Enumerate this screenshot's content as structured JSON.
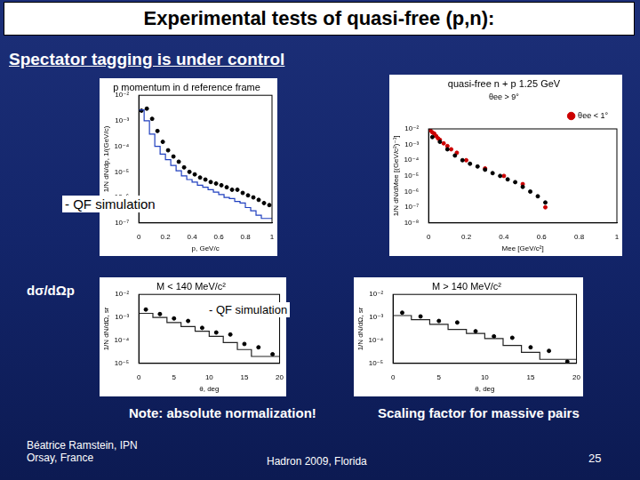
{
  "slide": {
    "title": "Experimental tests of quasi-free (p,n):",
    "subtitle": "Spectator tagging is under control",
    "qf_label_top": "- QF simulation",
    "qf_label_bottom": "- QF simulation",
    "section_label": "dσ/dΩp",
    "note_left": "Note: absolute normalization!",
    "note_right": "Scaling factor for massive pairs",
    "author": [
      "Béatrice Ramstein, IPN",
      "Orsay, France"
    ],
    "conference": "Hadron 2009, Florida",
    "page": "25"
  },
  "chart_data": [
    {
      "type": "line",
      "title": "p momentum in d reference frame",
      "x_label": "p, GeV/c",
      "y_label": "1/N dN/dp, 1/(GeV/c)",
      "log": "y",
      "grid": false,
      "xlim": [
        0,
        1
      ],
      "xticks": [
        0,
        0.2,
        0.4,
        0.6,
        0.8,
        1
      ],
      "ylim": [
        1e-07,
        0.01
      ],
      "yticks": [
        {
          "value": 1e-07,
          "label": "10⁻⁷"
        },
        {
          "value": 1e-06,
          "label": "10⁻⁶"
        },
        {
          "value": 1e-05,
          "label": "10⁻⁵"
        },
        {
          "value": 0.0001,
          "label": "10⁻⁴"
        },
        {
          "value": 0.001,
          "label": "10⁻³"
        },
        {
          "value": 0.01,
          "label": "10⁻²"
        }
      ],
      "series": [
        {
          "type": "histogram",
          "color": "#1f3fbf",
          "line_style": "steps",
          "bins": [
            0,
            0.04,
            0.08,
            0.12,
            0.16,
            0.2,
            0.24,
            0.28,
            0.32,
            0.36,
            0.4,
            0.44,
            0.48,
            0.52,
            0.56,
            0.6,
            0.64,
            0.68,
            0.72,
            0.76,
            0.8,
            0.84,
            0.88,
            0.92,
            0.96,
            1
          ],
          "values": [
            0.0028,
            0.0027,
            0.001,
            0.0003,
            0.0001,
            5e-05,
            3e-05,
            1.8e-05,
            1.1e-05,
            7e-06,
            5e-06,
            4e-06,
            3e-06,
            2.5e-06,
            2e-06,
            1.6e-06,
            1.3e-06,
            1e-06,
            9e-07,
            7e-07,
            6e-07,
            4e-07,
            3e-07,
            2e-07,
            1.5e-07
          ]
        },
        {
          "type": "scatter",
          "color": "#000000",
          "marker": "circle",
          "x": [
            0.02,
            0.06,
            0.1,
            0.14,
            0.18,
            0.22,
            0.26,
            0.3,
            0.34,
            0.38,
            0.42,
            0.46,
            0.5,
            0.54,
            0.58,
            0.62,
            0.66,
            0.7,
            0.74,
            0.78,
            0.82,
            0.86,
            0.9,
            0.94,
            0.98
          ],
          "values": [
            0.0025,
            0.003,
            0.0012,
            0.0004,
            0.00015,
            7e-05,
            4e-05,
            2.5e-05,
            1.5e-05,
            1e-05,
            8e-06,
            6e-06,
            5e-06,
            4e-06,
            3.5e-06,
            3e-06,
            2.5e-06,
            2e-06,
            2e-06,
            1.5e-06,
            1.2e-06,
            1e-06,
            8e-07,
            6e-07,
            5e-07
          ]
        }
      ]
    },
    {
      "type": "line",
      "title": "quasi-free n + p 1.25 GeV",
      "subtitle": "θee > 9°",
      "x_label": "Mee [GeV/c²]",
      "y_label": "1/N dN/dMee [(GeV/c²)⁻¹]",
      "log": "y",
      "grid": false,
      "legend": "top-right",
      "xlim": [
        0,
        1
      ],
      "xticks": [
        0,
        0.2,
        0.4,
        0.6,
        0.8,
        1
      ],
      "ylim": [
        1e-08,
        0.01
      ],
      "yticks": [
        {
          "value": 1e-08,
          "label": "10⁻⁸"
        },
        {
          "value": 1e-07,
          "label": "10⁻⁷"
        },
        {
          "value": 1e-06,
          "label": "10⁻⁶"
        },
        {
          "value": 1e-05,
          "label": "10⁻⁵"
        },
        {
          "value": 0.0001,
          "label": "10⁻⁴"
        },
        {
          "value": 0.001,
          "label": "10⁻³"
        },
        {
          "value": 0.01,
          "label": "10⁻²"
        }
      ],
      "series": [
        {
          "type": "scatter",
          "color": "#000000",
          "marker": "circle",
          "x": [
            0.02,
            0.06,
            0.1,
            0.14,
            0.18,
            0.22,
            0.26,
            0.3,
            0.34,
            0.38,
            0.42,
            0.46,
            0.5,
            0.54,
            0.58,
            0.62
          ],
          "values": [
            0.003,
            0.0015,
            0.0005,
            0.0002,
            0.0001,
            6e-05,
            4e-05,
            2.5e-05,
            1.5e-05,
            1e-05,
            6e-06,
            4e-06,
            2e-06,
            1e-06,
            5e-07,
            2e-07
          ]
        },
        {
          "type": "scatter",
          "name": "θee < 1°",
          "color": "#cc0000",
          "marker": "circle",
          "x": [
            0.01,
            0.02,
            0.03,
            0.04,
            0.05,
            0.06,
            0.08,
            0.1,
            0.12,
            0.15,
            0.2,
            0.3,
            0.4,
            0.5,
            0.62
          ],
          "values": [
            0.008,
            0.006,
            0.005,
            0.0035,
            0.0025,
            0.002,
            0.0012,
            0.0008,
            0.0005,
            0.0003,
            0.0001,
            3e-05,
            1e-05,
            3e-06,
            1e-07
          ]
        }
      ]
    },
    {
      "type": "line",
      "title": "M < 140 MeV/c²",
      "x_label": "θ, deg",
      "y_label": "1/N dN/dΩ, sr",
      "log": "y",
      "grid": false,
      "xlim": [
        0,
        20
      ],
      "xticks": [
        0,
        5,
        10,
        15,
        20
      ],
      "ylim": [
        1e-05,
        0.01
      ],
      "yticks": [
        {
          "value": 1e-05,
          "label": "10⁻⁵"
        },
        {
          "value": 0.0001,
          "label": "10⁻⁴"
        },
        {
          "value": 0.001,
          "label": "10⁻³"
        },
        {
          "value": 0.01,
          "label": "10⁻²"
        }
      ],
      "series": [
        {
          "type": "histogram",
          "color": "#222222",
          "line_style": "steps",
          "bins": [
            0,
            2,
            4,
            6,
            8,
            10,
            12,
            14,
            16,
            18,
            20
          ],
          "values": [
            0.002,
            0.0015,
            0.001,
            0.0006,
            0.0004,
            0.00025,
            0.00015,
            8e-05,
            4e-05,
            2e-05
          ]
        },
        {
          "type": "scatter",
          "color": "#000000",
          "marker": "circle",
          "x": [
            1,
            3,
            5,
            7,
            9,
            11,
            13,
            15,
            17,
            19
          ],
          "values": [
            0.0022,
            0.0014,
            0.0009,
            0.0007,
            0.00035,
            0.00022,
            0.00018,
            7e-05,
            5e-05,
            2.5e-05
          ]
        }
      ]
    },
    {
      "type": "line",
      "title": "M > 140 MeV/c²",
      "x_label": "θ, deg",
      "y_label": "1/N dN/dΩ, sr",
      "log": "y",
      "grid": false,
      "xlim": [
        0,
        20
      ],
      "xticks": [
        0,
        5,
        10,
        15,
        20
      ],
      "ylim": [
        1e-05,
        0.01
      ],
      "yticks": [
        {
          "value": 1e-05,
          "label": "10⁻⁵"
        },
        {
          "value": 0.0001,
          "label": "10⁻⁴"
        },
        {
          "value": 0.001,
          "label": "10⁻³"
        },
        {
          "value": 0.01,
          "label": "10⁻²"
        }
      ],
      "series": [
        {
          "type": "histogram",
          "color": "#222222",
          "line_style": "steps",
          "bins": [
            0,
            2,
            4,
            6,
            8,
            10,
            12,
            14,
            16,
            18,
            20
          ],
          "values": [
            0.0015,
            0.0012,
            0.0008,
            0.0005,
            0.0003,
            0.0002,
            0.00012,
            6e-05,
            3e-05,
            1.5e-05
          ]
        },
        {
          "type": "scatter",
          "color": "#000000",
          "marker": "circle",
          "x": [
            1,
            3,
            5,
            7,
            9,
            11,
            13,
            15,
            17,
            19
          ],
          "values": [
            0.0016,
            0.0011,
            0.0007,
            0.0006,
            0.00025,
            0.00015,
            0.00013,
            5e-05,
            3.5e-05,
            1.2e-05
          ]
        }
      ]
    }
  ]
}
